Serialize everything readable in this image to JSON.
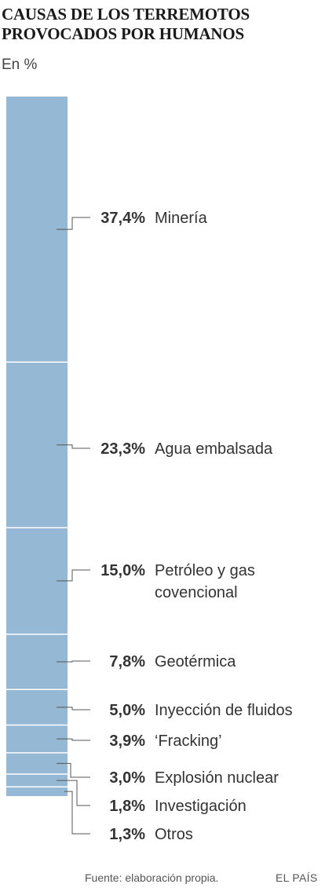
{
  "header": {
    "title_line1": "CAUSAS DE LOS TERREMOTOS",
    "title_line2": "PROVOCADOS POR HUMANOS",
    "unit": "En %"
  },
  "footer": {
    "source": "Fuente: elaboración propia.",
    "brand": "EL PAÍS"
  },
  "colors": {
    "bar": "#95b9d5",
    "divider": "#ffffff",
    "leader": "#555555",
    "value_text": "#333333",
    "label_text": "#333333"
  },
  "chart_data": {
    "type": "bar",
    "title": "CAUSAS DE LOS TERREMOTOS PROVOCADOS POR HUMANOS",
    "unit": "En %",
    "stacked": true,
    "categories": [
      "Minería",
      "Agua embalsada",
      "Petróleo y gas covencional",
      "Geotérmica",
      "Inyección de fluidos",
      "‘Fracking’",
      "Explosión nuclear",
      "Investigación",
      "Otros"
    ],
    "values": [
      37.4,
      23.3,
      15.0,
      7.8,
      5.0,
      3.9,
      3.0,
      1.8,
      1.3
    ],
    "value_labels": [
      "37,4%",
      "23,3%",
      "15,0%",
      "7,8%",
      "5,0%",
      "3,9%",
      "3,0%",
      "1,8%",
      "1,3%"
    ],
    "label_lines": [
      [
        "Minería"
      ],
      [
        "Agua embalsada"
      ],
      [
        "Petróleo y gas",
        "covencional"
      ],
      [
        "Geotérmica"
      ],
      [
        "Inyección de fluidos"
      ],
      [
        "‘Fracking’"
      ],
      [
        "Explosión nuclear"
      ],
      [
        "Investigación"
      ],
      [
        "Otros"
      ]
    ]
  }
}
